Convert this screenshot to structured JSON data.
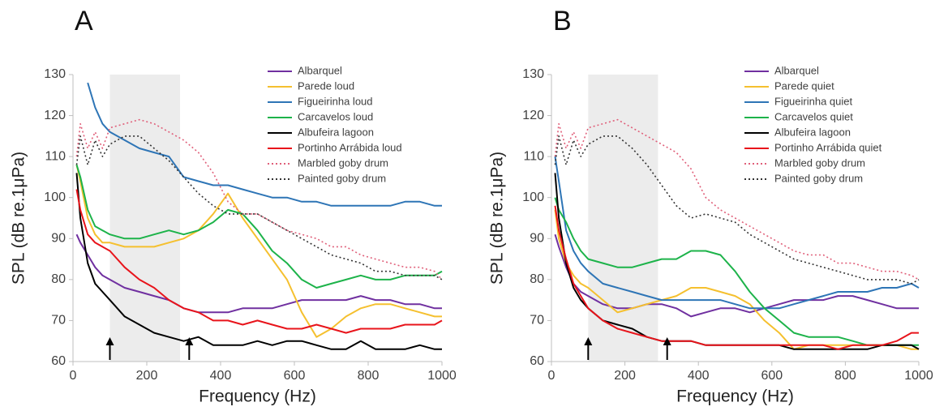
{
  "chart_data": [
    {
      "type": "line",
      "title": "A",
      "x_label": "Frequency (Hz)",
      "y_label": "SPL (dB re.1μPa)",
      "xlim": [
        0,
        1000
      ],
      "xticks": [
        0,
        200,
        400,
        600,
        800,
        1000
      ],
      "ylim": [
        60,
        130
      ],
      "yticks": [
        60,
        70,
        80,
        90,
        100,
        110,
        120,
        130
      ],
      "highlight_band": [
        100,
        290
      ],
      "arrows_x": [
        100,
        315
      ],
      "x": [
        10,
        20,
        40,
        60,
        80,
        100,
        140,
        180,
        220,
        260,
        300,
        340,
        380,
        420,
        460,
        500,
        540,
        580,
        620,
        660,
        700,
        740,
        780,
        820,
        860,
        900,
        940,
        980,
        1000
      ],
      "series": [
        {
          "name": "Albarquel",
          "color": "#7030a0",
          "dash": "solid",
          "values": [
            91,
            89,
            86,
            83,
            81,
            80,
            78,
            77,
            76,
            75,
            73,
            72,
            72,
            72,
            73,
            73,
            73,
            74,
            75,
            75,
            75,
            75,
            76,
            75,
            75,
            74,
            74,
            73,
            73
          ]
        },
        {
          "name": "Parede loud",
          "color": "#f5c02f",
          "dash": "solid",
          "values": [
            108,
            104,
            95,
            91,
            89,
            89,
            88,
            88,
            88,
            89,
            90,
            92,
            96,
            101,
            95,
            90,
            85,
            80,
            72,
            66,
            68,
            71,
            73,
            74,
            74,
            73,
            72,
            71,
            71
          ]
        },
        {
          "name": "Figueirinha loud",
          "color": "#2e75b6",
          "dash": "solid",
          "values": [
            null,
            null,
            128,
            122,
            118,
            116,
            114,
            112,
            111,
            110,
            105,
            104,
            103,
            103,
            102,
            101,
            100,
            100,
            99,
            99,
            98,
            98,
            98,
            98,
            98,
            99,
            99,
            98,
            98
          ]
        },
        {
          "name": "Carcavelos loud",
          "color": "#1db34a",
          "dash": "solid",
          "values": [
            108,
            105,
            97,
            93,
            92,
            91,
            90,
            90,
            91,
            92,
            91,
            92,
            94,
            97,
            96,
            92,
            87,
            84,
            80,
            78,
            79,
            80,
            81,
            80,
            80,
            81,
            81,
            81,
            82
          ]
        },
        {
          "name": "Albufeira lagoon",
          "color": "#000000",
          "dash": "solid",
          "values": [
            106,
            95,
            84,
            79,
            77,
            75,
            71,
            69,
            67,
            66,
            65,
            66,
            64,
            64,
            64,
            65,
            64,
            65,
            65,
            64,
            63,
            63,
            65,
            63,
            63,
            63,
            64,
            63,
            63
          ]
        },
        {
          "name": "Portinho Arrábida loud",
          "color": "#e8141b",
          "dash": "solid",
          "values": [
            102,
            97,
            91,
            89,
            88,
            87,
            83,
            80,
            78,
            75,
            73,
            72,
            70,
            70,
            69,
            70,
            69,
            68,
            68,
            69,
            68,
            67,
            68,
            68,
            68,
            69,
            69,
            69,
            70
          ]
        },
        {
          "name": "Marbled goby drum",
          "color": "#e0607a",
          "dash": "dotted",
          "values": [
            110,
            118,
            112,
            116,
            112,
            117,
            118,
            119,
            118,
            116,
            114,
            111,
            106,
            99,
            96,
            96,
            94,
            92,
            91,
            90,
            88,
            88,
            86,
            85,
            84,
            83,
            83,
            82,
            80
          ]
        },
        {
          "name": "Painted goby drum",
          "color": "#333333",
          "dash": "dotted",
          "values": [
            108,
            115,
            108,
            114,
            110,
            113,
            115,
            115,
            112,
            109,
            105,
            101,
            98,
            96,
            96,
            96,
            94,
            92,
            90,
            88,
            86,
            85,
            84,
            82,
            82,
            81,
            81,
            81,
            80
          ]
        }
      ]
    },
    {
      "type": "line",
      "title": "B",
      "x_label": "Frequency (Hz)",
      "y_label": "SPL (dB re.1μPa)",
      "xlim": [
        0,
        1000
      ],
      "xticks": [
        0,
        200,
        400,
        600,
        800,
        1000
      ],
      "ylim": [
        60,
        130
      ],
      "yticks": [
        60,
        70,
        80,
        90,
        100,
        110,
        120,
        130
      ],
      "highlight_band": [
        100,
        290
      ],
      "arrows_x": [
        100,
        315
      ],
      "x": [
        10,
        20,
        40,
        60,
        80,
        100,
        140,
        180,
        220,
        260,
        300,
        340,
        380,
        420,
        460,
        500,
        540,
        580,
        620,
        660,
        700,
        740,
        780,
        820,
        860,
        900,
        940,
        980,
        1000
      ],
      "series": [
        {
          "name": "Albarquel",
          "color": "#7030a0",
          "dash": "solid",
          "values": [
            91,
            88,
            83,
            79,
            77,
            76,
            74,
            73,
            73,
            74,
            74,
            73,
            71,
            72,
            73,
            73,
            72,
            73,
            74,
            75,
            75,
            75,
            76,
            76,
            75,
            74,
            73,
            73,
            73
          ]
        },
        {
          "name": "Parede quiet",
          "color": "#f5c02f",
          "dash": "solid",
          "values": [
            97,
            90,
            84,
            81,
            79,
            78,
            75,
            72,
            73,
            74,
            75,
            76,
            78,
            78,
            77,
            76,
            74,
            70,
            67,
            63,
            64,
            64,
            64,
            64,
            64,
            64,
            64,
            63,
            63
          ]
        },
        {
          "name": "Figueirinha quiet",
          "color": "#2e75b6",
          "dash": "solid",
          "values": [
            110,
            104,
            92,
            87,
            84,
            82,
            79,
            78,
            77,
            76,
            75,
            75,
            75,
            75,
            75,
            74,
            73,
            73,
            73,
            74,
            75,
            76,
            77,
            77,
            77,
            78,
            78,
            79,
            78
          ]
        },
        {
          "name": "Carcavelos quiet",
          "color": "#1db34a",
          "dash": "solid",
          "values": [
            100,
            97,
            94,
            90,
            87,
            85,
            84,
            83,
            83,
            84,
            85,
            85,
            87,
            87,
            86,
            82,
            77,
            73,
            70,
            67,
            66,
            66,
            66,
            65,
            64,
            64,
            64,
            64,
            64
          ]
        },
        {
          "name": "Albufeira lagoon",
          "color": "#000000",
          "dash": "solid",
          "values": [
            106,
            95,
            84,
            78,
            75,
            73,
            70,
            69,
            68,
            66,
            65,
            65,
            65,
            64,
            64,
            64,
            64,
            64,
            64,
            63,
            63,
            63,
            63,
            63,
            63,
            64,
            64,
            64,
            63
          ]
        },
        {
          "name": "Portinho Arrábida quiet",
          "color": "#e8141b",
          "dash": "solid",
          "values": [
            98,
            92,
            85,
            79,
            76,
            73,
            70,
            68,
            67,
            66,
            65,
            65,
            65,
            64,
            64,
            64,
            64,
            64,
            64,
            64,
            64,
            64,
            63,
            64,
            64,
            64,
            65,
            67,
            67
          ]
        },
        {
          "name": "Marbled goby drum",
          "color": "#e0607a",
          "dash": "dotted",
          "values": [
            110,
            118,
            112,
            116,
            112,
            117,
            118,
            119,
            117,
            115,
            113,
            111,
            107,
            100,
            97,
            95,
            93,
            91,
            89,
            87,
            86,
            86,
            84,
            84,
            83,
            82,
            82,
            81,
            80
          ]
        },
        {
          "name": "Painted goby drum",
          "color": "#333333",
          "dash": "dotted",
          "values": [
            108,
            115,
            108,
            114,
            110,
            113,
            115,
            115,
            112,
            108,
            103,
            98,
            95,
            96,
            95,
            94,
            91,
            89,
            87,
            85,
            84,
            83,
            82,
            81,
            80,
            80,
            80,
            79,
            80
          ]
        }
      ]
    }
  ]
}
